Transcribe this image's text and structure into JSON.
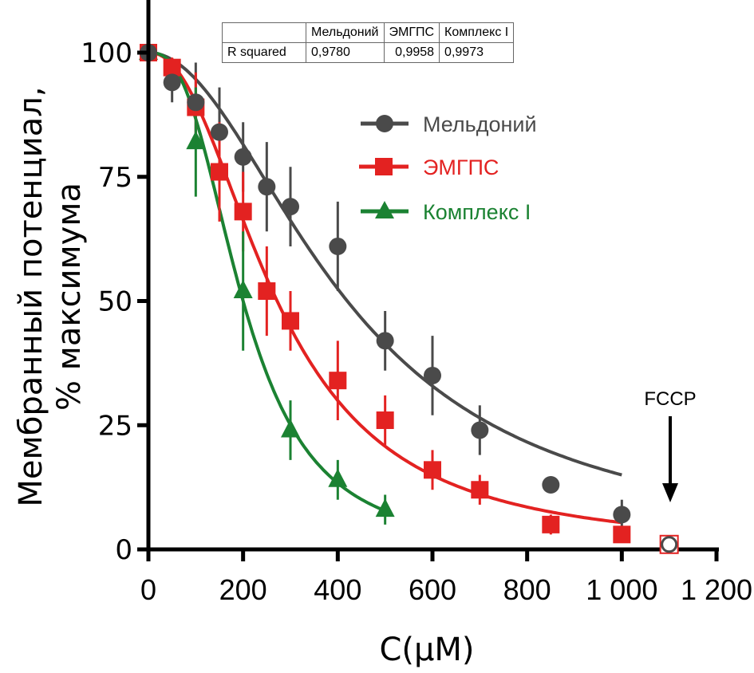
{
  "chart_data": {
    "type": "scatter",
    "title": "",
    "xlabel": "C(µM)",
    "ylabel_line1": "Мембранный потенциал,",
    "ylabel_line2": "% максимума",
    "xlim": [
      0,
      1200
    ],
    "ylim": [
      0,
      100
    ],
    "xticks": [
      0,
      200,
      400,
      600,
      800,
      1000,
      1200
    ],
    "xtick_labels": [
      "0",
      "200",
      "400",
      "600",
      "800",
      "1 000",
      "1 200"
    ],
    "yticks": [
      0,
      25,
      50,
      75,
      100
    ],
    "ytick_labels": [
      "0",
      "25",
      "50",
      "75",
      "100"
    ],
    "grid": false,
    "legend_position": "upper-center-right",
    "series": [
      {
        "name": "Мельдоний",
        "color": "#4a4a4a",
        "marker": "circle",
        "x": [
          0,
          50,
          100,
          150,
          200,
          250,
          300,
          400,
          500,
          600,
          700,
          850,
          1000
        ],
        "y": [
          100,
          94,
          90,
          84,
          79,
          73,
          69,
          61,
          42,
          35,
          24,
          13,
          7
        ],
        "err": [
          0,
          4,
          8,
          9,
          7,
          9,
          8,
          9,
          6,
          8,
          5,
          1,
          3
        ],
        "fit": {
          "x_max": 1000,
          "top": 100,
          "ic50": 420,
          "hill": 2.0,
          "bottom": 0
        }
      },
      {
        "name": "ЭМГПС",
        "color": "#e32221",
        "marker": "square",
        "x": [
          0,
          50,
          100,
          150,
          200,
          250,
          300,
          400,
          500,
          600,
          700,
          850,
          1000
        ],
        "y": [
          100,
          97,
          89,
          76,
          68,
          52,
          46,
          34,
          26,
          16,
          12,
          5,
          3
        ],
        "err": [
          0,
          2,
          7,
          10,
          8,
          9,
          6,
          8,
          5,
          4,
          3,
          2,
          1
        ],
        "fit": {
          "x_max": 1000,
          "top": 100,
          "ic50": 272,
          "hill": 2.2,
          "bottom": 0
        }
      },
      {
        "name": "Комплекс I",
        "color": "#1b8232",
        "marker": "triangle",
        "x": [
          0,
          100,
          200,
          300,
          400,
          500
        ],
        "y": [
          100,
          82,
          52,
          24,
          14,
          8
        ],
        "err": [
          0,
          11,
          12,
          6,
          4,
          3
        ],
        "fit": {
          "x_max": 500,
          "top": 100,
          "ic50": 200,
          "hill": 2.7,
          "bottom": 0
        }
      }
    ],
    "fccp_point": {
      "label": "FCCP",
      "x": 1100,
      "y": 1
    },
    "r_squared_table": {
      "row_label": "R squared",
      "columns": [
        "Мельдоний",
        "ЭМГПС",
        "Комплекс I"
      ],
      "values": [
        "0,9780",
        "0,9958",
        "0,9973"
      ]
    }
  }
}
